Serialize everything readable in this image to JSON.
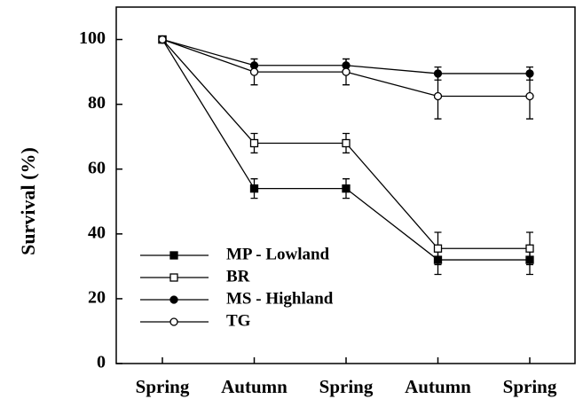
{
  "chart_data": {
    "type": "line",
    "y_label": "Survival (%)",
    "categories": [
      "Spring",
      "Autumn",
      "Spring",
      "Autumn",
      "Spring"
    ],
    "ylim": [
      0,
      110
    ],
    "yticks": [
      0,
      20,
      40,
      60,
      80,
      100
    ],
    "legend": "lower-left",
    "series": [
      {
        "name": "MP - Lowland",
        "color": "#000000",
        "marker": "filled-square",
        "values": [
          100,
          54,
          54,
          32,
          32
        ],
        "errors": [
          0,
          3,
          3,
          4.5,
          4.5
        ]
      },
      {
        "name": "BR",
        "color": "#000000",
        "marker": "open-square",
        "values": [
          100,
          68,
          68,
          35.5,
          35.5
        ],
        "errors": [
          0,
          3,
          3,
          5,
          5
        ]
      },
      {
        "name": "MS - Highland",
        "color": "#000000",
        "marker": "filled-circle",
        "values": [
          100,
          92,
          92,
          89.5,
          89.5
        ],
        "errors": [
          0,
          2,
          2,
          2,
          2
        ]
      },
      {
        "name": "TG",
        "color": "#000000",
        "marker": "open-circle",
        "values": [
          100,
          90,
          90,
          82.5,
          82.5
        ],
        "errors": [
          0,
          4,
          4,
          7,
          7
        ]
      }
    ]
  }
}
